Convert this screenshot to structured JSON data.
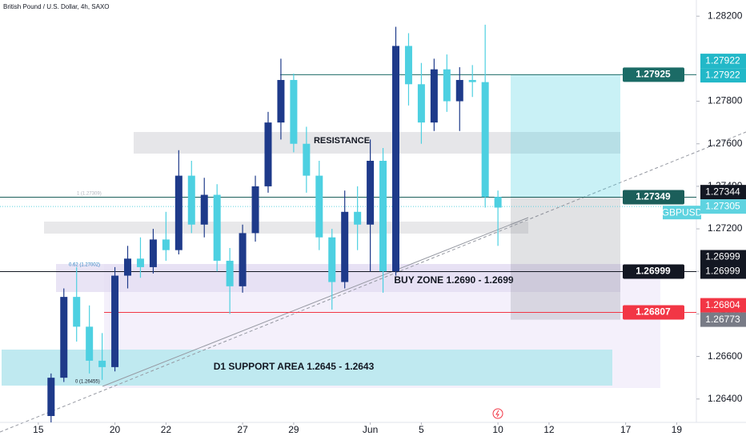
{
  "chart_data": {
    "type": "candlestick",
    "title": "British Pound / U.S. Dollar, 4h, SAXO",
    "symbol": "GBPUSD",
    "x": [
      0.5,
      1,
      1.5,
      2,
      2.5,
      3,
      3.5,
      4,
      4.5,
      5,
      5.5,
      6,
      6.5,
      7,
      7.5,
      8,
      8.5,
      9,
      9.5,
      10,
      10.5,
      11,
      11.5,
      12,
      12.5,
      13,
      13.5,
      14,
      14.5,
      15,
      15.5,
      16,
      16.5,
      17,
      17.5,
      18
    ],
    "open": [
      1.2632,
      1.265,
      1.2688,
      1.2674,
      1.2658,
      1.2655,
      1.2698,
      1.2706,
      1.2702,
      1.2715,
      1.271,
      1.2745,
      1.2722,
      1.2736,
      1.2705,
      1.2693,
      1.2718,
      1.274,
      1.277,
      1.279,
      1.276,
      1.2745,
      1.2716,
      1.2695,
      1.2728,
      1.2722,
      1.2752,
      1.27,
      1.2806,
      1.2788,
      1.277,
      1.2795,
      1.278,
      1.279,
      1.2789,
      1.2735
    ],
    "high": [
      1.2652,
      1.2692,
      1.2702,
      1.2684,
      1.2671,
      1.2702,
      1.2712,
      1.2716,
      1.272,
      1.2728,
      1.2757,
      1.2752,
      1.2744,
      1.2741,
      1.2711,
      1.2722,
      1.2745,
      1.2775,
      1.28,
      1.2793,
      1.2768,
      1.2752,
      1.272,
      1.2738,
      1.274,
      1.2762,
      1.2758,
      1.2815,
      1.2812,
      1.2798,
      1.28,
      1.2802,
      1.2796,
      1.2797,
      1.2816,
      1.2738
    ],
    "low": [
      1.2629,
      1.2648,
      1.2667,
      1.2652,
      1.2649,
      1.2653,
      1.2692,
      1.2697,
      1.2699,
      1.2705,
      1.2708,
      1.2718,
      1.2716,
      1.27,
      1.268,
      1.269,
      1.2714,
      1.2737,
      1.2762,
      1.2756,
      1.2737,
      1.271,
      1.2682,
      1.2692,
      1.271,
      1.27,
      1.269,
      1.2698,
      1.2778,
      1.276,
      1.2766,
      1.2775,
      1.2766,
      1.2782,
      1.273,
      1.2712
    ],
    "close": [
      1.265,
      1.2688,
      1.2674,
      1.2658,
      1.2655,
      1.2698,
      1.2706,
      1.2702,
      1.2715,
      1.271,
      1.2745,
      1.2722,
      1.2736,
      1.2705,
      1.2693,
      1.2718,
      1.274,
      1.277,
      1.279,
      1.276,
      1.2745,
      1.2716,
      1.2695,
      1.2728,
      1.2722,
      1.2752,
      1.27,
      1.2806,
      1.2788,
      1.277,
      1.2795,
      1.278,
      1.279,
      1.2789,
      1.2735,
      1.273
    ],
    "up_color": "#1e3a8a",
    "down_color": "#4dd0e1",
    "xlim": [
      -1.5,
      25.77
    ],
    "xticks": [
      {
        "value": 0,
        "label": "15"
      },
      {
        "value": 3,
        "label": "20"
      },
      {
        "value": 5,
        "label": "22"
      },
      {
        "value": 8,
        "label": "27"
      },
      {
        "value": 10,
        "label": "29"
      },
      {
        "value": 13,
        "label": "Jun"
      },
      {
        "value": 15,
        "label": "5"
      },
      {
        "value": 18,
        "label": "10"
      },
      {
        "value": 20,
        "label": "12"
      },
      {
        "value": 23,
        "label": "17"
      },
      {
        "value": 25,
        "label": "19"
      }
    ],
    "ylim": [
      1.2629,
      1.28276
    ],
    "yticks": [
      {
        "value": 1.264,
        "label": "1.26400"
      },
      {
        "value": 1.266,
        "label": "1.26600"
      },
      {
        "value": 1.268,
        "label": "1.26800"
      },
      {
        "value": 1.27,
        "label": "1.27000"
      },
      {
        "value": 1.272,
        "label": "1.27200"
      },
      {
        "value": 1.274,
        "label": "1.27400"
      },
      {
        "value": 1.276,
        "label": "1.27600"
      },
      {
        "value": 1.278,
        "label": "1.27800"
      },
      {
        "value": 1.282,
        "label": "1.28200"
      }
    ],
    "price_lines": [
      {
        "value": 1.27925,
        "color": "#1b6b66"
      },
      {
        "value": 1.27349,
        "color": "#1b5e5a"
      },
      {
        "value": 1.26999,
        "color": "#131722"
      },
      {
        "value": 1.26807,
        "color": "#f23645"
      }
    ],
    "axis_tags": [
      {
        "value": 1.27922,
        "color": "#22b8c8"
      },
      {
        "value": 1.27922,
        "color": "#22b8c8"
      },
      {
        "value": 1.27344,
        "color": "#131722"
      },
      {
        "value": 1.27305,
        "color": "#5ed3e0"
      },
      {
        "value": 1.26999,
        "color": "#131722"
      },
      {
        "value": 1.26999,
        "color": "#131722"
      },
      {
        "value": 1.26804,
        "color": "#f23645"
      },
      {
        "value": 1.26773,
        "color": "#787b86"
      }
    ],
    "zone_labels": [
      "RESISTANCE",
      "BUY ZONE 1.2690 - 1.2699",
      "D1 SUPPORT AREA 1.2645 - 1.2643"
    ],
    "fib_labels": [
      "1 (1.27309)",
      "0.62 (1.27002)",
      "0 (1.26455)"
    ]
  }
}
